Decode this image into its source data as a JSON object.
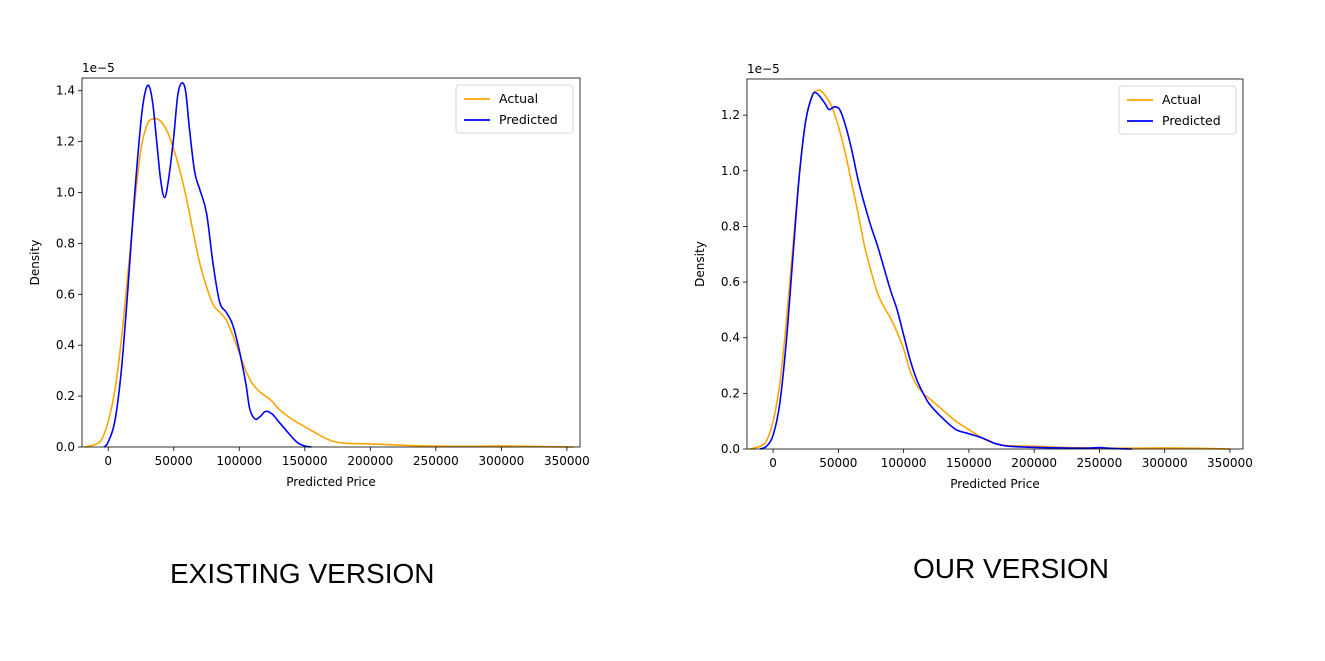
{
  "captions": {
    "left": "EXISTING VERSION",
    "right": "OUR VERSION"
  },
  "colors": {
    "actual": "#ffa500",
    "predicted": "#0000ff"
  },
  "chart_data": [
    {
      "type": "line",
      "chart_kind": "kde-density",
      "title": "",
      "xlabel": "Predicted Price",
      "ylabel": "Density",
      "offset_label": "1e−5",
      "xlim": [
        -20000,
        360000
      ],
      "ylim": [
        0,
        1.45
      ],
      "x_ticks": [
        0,
        50000,
        100000,
        150000,
        200000,
        250000,
        300000,
        350000
      ],
      "x_tick_labels": [
        "0",
        "50000",
        "100000",
        "150000",
        "200000",
        "250000",
        "300000",
        "350000"
      ],
      "y_ticks": [
        0,
        0.2,
        0.4,
        0.6,
        0.8,
        1.0,
        1.2,
        1.4
      ],
      "y_tick_labels": [
        "0.0",
        "0.2",
        "0.4",
        "0.6",
        "0.8",
        "1.0",
        "1.2",
        "1.4"
      ],
      "grid": false,
      "legend": "top-right",
      "series": [
        {
          "name": "Actual",
          "color": "#ffa500",
          "points": [
            [
              -18000,
              0
            ],
            [
              -10000,
              0.01
            ],
            [
              -5000,
              0.03
            ],
            [
              0,
              0.1
            ],
            [
              5000,
              0.22
            ],
            [
              10000,
              0.42
            ],
            [
              15000,
              0.68
            ],
            [
              20000,
              0.95
            ],
            [
              25000,
              1.17
            ],
            [
              30000,
              1.27
            ],
            [
              35000,
              1.29
            ],
            [
              40000,
              1.28
            ],
            [
              45000,
              1.24
            ],
            [
              50000,
              1.17
            ],
            [
              55000,
              1.08
            ],
            [
              60000,
              0.97
            ],
            [
              65000,
              0.84
            ],
            [
              70000,
              0.72
            ],
            [
              75000,
              0.63
            ],
            [
              80000,
              0.56
            ],
            [
              85000,
              0.53
            ],
            [
              90000,
              0.5
            ],
            [
              95000,
              0.44
            ],
            [
              100000,
              0.37
            ],
            [
              105000,
              0.3
            ],
            [
              110000,
              0.25
            ],
            [
              115000,
              0.22
            ],
            [
              120000,
              0.2
            ],
            [
              125000,
              0.18
            ],
            [
              130000,
              0.15
            ],
            [
              140000,
              0.11
            ],
            [
              150000,
              0.08
            ],
            [
              160000,
              0.05
            ],
            [
              170000,
              0.025
            ],
            [
              180000,
              0.015
            ],
            [
              200000,
              0.012
            ],
            [
              220000,
              0.008
            ],
            [
              240000,
              0.004
            ],
            [
              260000,
              0.003
            ],
            [
              280000,
              0.003
            ],
            [
              300000,
              0.004
            ],
            [
              320000,
              0.003
            ],
            [
              340000,
              0.001
            ],
            [
              355000,
              0
            ]
          ]
        },
        {
          "name": "Predicted",
          "color": "#0000ff",
          "points": [
            [
              -3000,
              0
            ],
            [
              0,
              0.02
            ],
            [
              5000,
              0.1
            ],
            [
              10000,
              0.3
            ],
            [
              15000,
              0.62
            ],
            [
              20000,
              0.98
            ],
            [
              25000,
              1.28
            ],
            [
              28000,
              1.39
            ],
            [
              31000,
              1.42
            ],
            [
              34000,
              1.35
            ],
            [
              37000,
              1.2
            ],
            [
              40000,
              1.05
            ],
            [
              43000,
              0.98
            ],
            [
              46000,
              1.05
            ],
            [
              50000,
              1.22
            ],
            [
              53000,
              1.38
            ],
            [
              56000,
              1.43
            ],
            [
              59000,
              1.4
            ],
            [
              62000,
              1.25
            ],
            [
              66000,
              1.08
            ],
            [
              70000,
              1.01
            ],
            [
              75000,
              0.92
            ],
            [
              80000,
              0.72
            ],
            [
              85000,
              0.57
            ],
            [
              90000,
              0.53
            ],
            [
              95000,
              0.48
            ],
            [
              100000,
              0.38
            ],
            [
              105000,
              0.25
            ],
            [
              108000,
              0.15
            ],
            [
              112000,
              0.11
            ],
            [
              116000,
              0.12
            ],
            [
              120000,
              0.14
            ],
            [
              125000,
              0.13
            ],
            [
              130000,
              0.1
            ],
            [
              135000,
              0.07
            ],
            [
              140000,
              0.04
            ],
            [
              145000,
              0.015
            ],
            [
              150000,
              0.004
            ],
            [
              155000,
              0
            ]
          ]
        }
      ]
    },
    {
      "type": "line",
      "chart_kind": "kde-density",
      "title": "",
      "xlabel": "Predicted Price",
      "ylabel": "Density",
      "offset_label": "1e−5",
      "xlim": [
        -20000,
        360000
      ],
      "ylim": [
        0,
        1.33
      ],
      "x_ticks": [
        0,
        50000,
        100000,
        150000,
        200000,
        250000,
        300000,
        350000
      ],
      "x_tick_labels": [
        "0",
        "50000",
        "100000",
        "150000",
        "200000",
        "250000",
        "300000",
        "350000"
      ],
      "y_ticks": [
        0,
        0.2,
        0.4,
        0.6,
        0.8,
        1.0,
        1.2
      ],
      "y_tick_labels": [
        "0.0",
        "0.2",
        "0.4",
        "0.6",
        "0.8",
        "1.0",
        "1.2"
      ],
      "grid": false,
      "legend": "top-right",
      "series": [
        {
          "name": "Actual",
          "color": "#ffa500",
          "points": [
            [
              -18000,
              0
            ],
            [
              -10000,
              0.01
            ],
            [
              -5000,
              0.03
            ],
            [
              0,
              0.1
            ],
            [
              5000,
              0.23
            ],
            [
              10000,
              0.45
            ],
            [
              15000,
              0.72
            ],
            [
              20000,
              0.98
            ],
            [
              25000,
              1.18
            ],
            [
              30000,
              1.27
            ],
            [
              35000,
              1.29
            ],
            [
              40000,
              1.27
            ],
            [
              45000,
              1.23
            ],
            [
              50000,
              1.16
            ],
            [
              55000,
              1.07
            ],
            [
              60000,
              0.96
            ],
            [
              65000,
              0.85
            ],
            [
              70000,
              0.73
            ],
            [
              75000,
              0.64
            ],
            [
              80000,
              0.56
            ],
            [
              85000,
              0.51
            ],
            [
              90000,
              0.47
            ],
            [
              95000,
              0.42
            ],
            [
              100000,
              0.36
            ],
            [
              105000,
              0.28
            ],
            [
              110000,
              0.23
            ],
            [
              115000,
              0.2
            ],
            [
              120000,
              0.18
            ],
            [
              125000,
              0.16
            ],
            [
              130000,
              0.14
            ],
            [
              140000,
              0.1
            ],
            [
              150000,
              0.07
            ],
            [
              160000,
              0.04
            ],
            [
              170000,
              0.02
            ],
            [
              180000,
              0.012
            ],
            [
              200000,
              0.01
            ],
            [
              220000,
              0.006
            ],
            [
              240000,
              0.004
            ],
            [
              260000,
              0.003
            ],
            [
              280000,
              0.003
            ],
            [
              300000,
              0.004
            ],
            [
              320000,
              0.003
            ],
            [
              340000,
              0.001
            ],
            [
              350000,
              0
            ]
          ]
        },
        {
          "name": "Predicted",
          "color": "#0000ff",
          "points": [
            [
              -10000,
              0
            ],
            [
              -5000,
              0.01
            ],
            [
              0,
              0.05
            ],
            [
              5000,
              0.16
            ],
            [
              10000,
              0.38
            ],
            [
              15000,
              0.68
            ],
            [
              20000,
              0.98
            ],
            [
              25000,
              1.18
            ],
            [
              30000,
              1.27
            ],
            [
              33000,
              1.28
            ],
            [
              37000,
              1.26
            ],
            [
              40000,
              1.24
            ],
            [
              43000,
              1.22
            ],
            [
              47000,
              1.23
            ],
            [
              51000,
              1.22
            ],
            [
              55000,
              1.17
            ],
            [
              60000,
              1.08
            ],
            [
              65000,
              0.97
            ],
            [
              70000,
              0.88
            ],
            [
              75000,
              0.8
            ],
            [
              80000,
              0.73
            ],
            [
              85000,
              0.65
            ],
            [
              90000,
              0.57
            ],
            [
              95000,
              0.5
            ],
            [
              100000,
              0.41
            ],
            [
              105000,
              0.32
            ],
            [
              110000,
              0.25
            ],
            [
              115000,
              0.2
            ],
            [
              120000,
              0.16
            ],
            [
              130000,
              0.11
            ],
            [
              140000,
              0.07
            ],
            [
              150000,
              0.055
            ],
            [
              160000,
              0.04
            ],
            [
              170000,
              0.02
            ],
            [
              180000,
              0.01
            ],
            [
              200000,
              0.006
            ],
            [
              220000,
              0.004
            ],
            [
              240000,
              0.003
            ],
            [
              250000,
              0.005
            ],
            [
              260000,
              0.002
            ],
            [
              275000,
              0
            ]
          ]
        }
      ]
    }
  ]
}
